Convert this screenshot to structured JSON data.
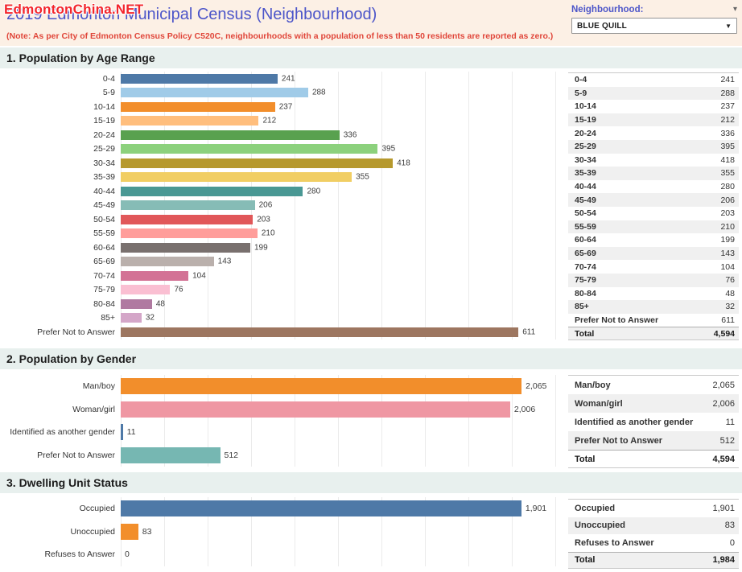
{
  "header": {
    "watermark": "EdmontonChina.NET",
    "title": "2019 Edmonton Municipal Census (Neighbourhood)",
    "note": "(Note: As per City of Edmonton Census Policy C520C, neighbourhoods with a population of less than 50 residents are reported as zero.)",
    "param_label": "Neighbourhood:",
    "param_value": "BLUE QUILL",
    "param_menu_caret": "▾",
    "select_caret": "▼"
  },
  "colors": {
    "title_text": "#4c55c9",
    "note_text": "#e0463a",
    "watermark_text": "#f3252b",
    "header_bg": "#fcf0e5",
    "section_band_bg": "#e8f0ee",
    "table_alt_row_bg": "#f0f0f0"
  },
  "chart_data": [
    {
      "type": "bar",
      "orientation": "horizontal",
      "title": "1. Population by Age Range",
      "categories": [
        "0-4",
        "5-9",
        "10-14",
        "15-19",
        "20-24",
        "25-29",
        "30-34",
        "35-39",
        "40-44",
        "45-49",
        "50-54",
        "55-59",
        "60-64",
        "65-69",
        "70-74",
        "75-79",
        "80-84",
        "85+",
        "Prefer Not to Answer"
      ],
      "values": [
        241,
        288,
        237,
        212,
        336,
        395,
        418,
        355,
        280,
        206,
        203,
        210,
        199,
        143,
        104,
        76,
        48,
        32,
        611
      ],
      "value_labels": [
        "241",
        "288",
        "237",
        "212",
        "336",
        "395",
        "418",
        "355",
        "280",
        "206",
        "203",
        "210",
        "199",
        "143",
        "104",
        "76",
        "48",
        "32",
        "611"
      ],
      "bar_colors": [
        "#4e79a7",
        "#a0cbe8",
        "#f28e2b",
        "#ffbe7d",
        "#59a14f",
        "#8cd17d",
        "#b6992d",
        "#f1ce63",
        "#499894",
        "#86bcb6",
        "#e15759",
        "#ff9d9a",
        "#79706e",
        "#bab0ac",
        "#d37295",
        "#fabfd2",
        "#b07aa1",
        "#d4a6c8",
        "#9d7660"
      ],
      "xlim": [
        0,
        680
      ],
      "grid": true,
      "legend": "none",
      "table": {
        "rows": [
          [
            "0-4",
            "241"
          ],
          [
            "5-9",
            "288"
          ],
          [
            "10-14",
            "237"
          ],
          [
            "15-19",
            "212"
          ],
          [
            "20-24",
            "336"
          ],
          [
            "25-29",
            "395"
          ],
          [
            "30-34",
            "418"
          ],
          [
            "35-39",
            "355"
          ],
          [
            "40-44",
            "280"
          ],
          [
            "45-49",
            "206"
          ],
          [
            "50-54",
            "203"
          ],
          [
            "55-59",
            "210"
          ],
          [
            "60-64",
            "199"
          ],
          [
            "65-69",
            "143"
          ],
          [
            "70-74",
            "104"
          ],
          [
            "75-79",
            "76"
          ],
          [
            "80-84",
            "48"
          ],
          [
            "85+",
            "32"
          ],
          [
            "Prefer Not to Answer",
            "611"
          ]
        ],
        "total": [
          "Total",
          "4,594"
        ]
      }
    },
    {
      "type": "bar",
      "orientation": "horizontal",
      "title": "2. Population by Gender",
      "categories": [
        "Man/boy",
        "Woman/girl",
        "Identified as another gender",
        "Prefer Not to Answer"
      ],
      "values": [
        2065,
        2006,
        11,
        512
      ],
      "value_labels": [
        "2,065",
        "2,006",
        "11",
        "512"
      ],
      "bar_colors": [
        "#f28e2b",
        "#ef97a3",
        "#4e79a7",
        "#76b7b2"
      ],
      "xlim": [
        0,
        2280
      ],
      "grid": true,
      "legend": "none",
      "table": {
        "rows": [
          [
            "Man/boy",
            "2,065"
          ],
          [
            "Woman/girl",
            "2,006"
          ],
          [
            "Identified as another gender",
            "11"
          ],
          [
            "Prefer Not to Answer",
            "512"
          ]
        ],
        "total": [
          "Total",
          "4,594"
        ]
      }
    },
    {
      "type": "bar",
      "orientation": "horizontal",
      "title": "3. Dwelling Unit Status",
      "categories": [
        "Occupied",
        "Unoccupied",
        "Refuses to Answer"
      ],
      "values": [
        1901,
        83,
        0
      ],
      "value_labels": [
        "1,901",
        "83",
        "0"
      ],
      "bar_colors": [
        "#4e79a7",
        "#f28e2b",
        "#4e79a7"
      ],
      "xlim": [
        0,
        2100
      ],
      "grid": true,
      "legend": "none",
      "table": {
        "rows": [
          [
            "Occupied",
            "1,901"
          ],
          [
            "Unoccupied",
            "83"
          ],
          [
            "Refuses to Answer",
            "0"
          ]
        ],
        "total": [
          "Total",
          "1,984"
        ]
      }
    }
  ]
}
